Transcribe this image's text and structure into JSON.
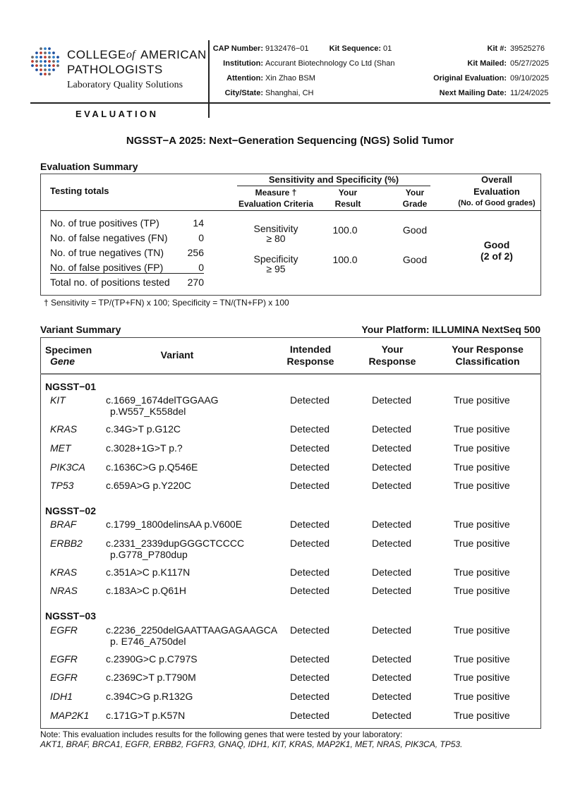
{
  "header": {
    "logo": {
      "word_1": "COLLEGE",
      "word_of": "of",
      "word_2": "AMERICAN",
      "word_3": "PATHOLOGISTS",
      "tagline": "Laboratory Quality Solutions"
    },
    "section": "EVALUATION",
    "fields_left": [
      {
        "label": "CAP Number:",
        "value": "9132476−01"
      },
      {
        "label": "Kit Sequence:",
        "value": "01"
      },
      {
        "label": "Institution:",
        "value": "Accurant Biotechnology Co Ltd (Shan"
      },
      {
        "label": "Attention:",
        "value": "Xin Zhao BSM"
      },
      {
        "label": "City/State:",
        "value": "Shanghai, CH"
      }
    ],
    "fields_right": [
      {
        "label": "Kit #:",
        "value": "39525276"
      },
      {
        "label": "Kit Mailed:",
        "value": "05/27/2025"
      },
      {
        "label": "Original Evaluation:",
        "value": "09/10/2025"
      },
      {
        "label": "Next Mailing Date:",
        "value": "11/24/2025"
      }
    ]
  },
  "title": "NGSST−A 2025: Next−Generation Sequencing (NGS) Solid Tumor",
  "evaluation_summary": {
    "heading": "Evaluation Summary",
    "testing_totals": "Testing totals",
    "group_header": "Sensitivity and Specificity (%)",
    "col_measure": [
      "Measure †",
      "Evaluation Criteria"
    ],
    "col_result": [
      "Your",
      "Result"
    ],
    "col_grade": [
      "Your",
      "Grade"
    ],
    "col_overall": [
      "Overall",
      "Evaluation",
      "(No. of Good grades)"
    ],
    "totals": [
      {
        "label": "No. of true positives (TP)",
        "value": 14
      },
      {
        "label": "No. of false negatives (FN)",
        "value": 0
      },
      {
        "label": "No. of true negatives (TN)",
        "value": 256
      },
      {
        "label": "No. of false positives (FP)",
        "value": 0
      },
      {
        "label": "Total no. of positions tested",
        "value": 270
      }
    ],
    "measures": [
      {
        "name": "Sensitivity",
        "criteria": "≥ 80",
        "result": "100.0",
        "grade": "Good"
      },
      {
        "name": "Specificity",
        "criteria": "≥ 95",
        "result": "100.0",
        "grade": "Good"
      }
    ],
    "overall": {
      "grade": "Good",
      "count": "(2 of 2)"
    },
    "footnote": "† Sensitivity = TP/(TP+FN) x 100; Specificity = TN/(TN+FP) x 100"
  },
  "variant_summary": {
    "heading": "Variant Summary",
    "platform": "Your Platform: ILLUMINA NextSeq 500",
    "col_specimen": [
      "Specimen",
      "Gene"
    ],
    "col_variant": "Variant",
    "col_intended": [
      "Intended",
      "Response"
    ],
    "col_response": [
      "Your",
      "Response"
    ],
    "col_class": [
      "Your Response",
      "Classification"
    ],
    "groups": [
      {
        "specimen": "NGSST−01",
        "rows": [
          {
            "gene": "KIT",
            "variant": [
              "c.1669_1674delTGGAAG",
              "p.W557_K558del"
            ],
            "intended": "Detected",
            "response": "Detected",
            "classification": "True positive"
          },
          {
            "gene": "KRAS",
            "variant": [
              "c.34G>T p.G12C"
            ],
            "intended": "Detected",
            "response": "Detected",
            "classification": "True positive"
          },
          {
            "gene": "MET",
            "variant": [
              "c.3028+1G>T p.?"
            ],
            "intended": "Detected",
            "response": "Detected",
            "classification": "True positive"
          },
          {
            "gene": "PIK3CA",
            "variant": [
              "c.1636C>G p.Q546E"
            ],
            "intended": "Detected",
            "response": "Detected",
            "classification": "True positive"
          },
          {
            "gene": "TP53",
            "variant": [
              "c.659A>G p.Y220C"
            ],
            "intended": "Detected",
            "response": "Detected",
            "classification": "True positive"
          }
        ]
      },
      {
        "specimen": "NGSST−02",
        "rows": [
          {
            "gene": "BRAF",
            "variant": [
              "c.1799_1800delinsAA p.V600E"
            ],
            "intended": "Detected",
            "response": "Detected",
            "classification": "True positive"
          },
          {
            "gene": "ERBB2",
            "variant": [
              "c.2331_2339dupGGGCTCCCC",
              "p.G778_P780dup"
            ],
            "intended": "Detected",
            "response": "Detected",
            "classification": "True positive"
          },
          {
            "gene": "KRAS",
            "variant": [
              "c.351A>C p.K117N"
            ],
            "intended": "Detected",
            "response": "Detected",
            "classification": "True positive"
          },
          {
            "gene": "NRAS",
            "variant": [
              "c.183A>C p.Q61H"
            ],
            "intended": "Detected",
            "response": "Detected",
            "classification": "True positive"
          }
        ]
      },
      {
        "specimen": "NGSST−03",
        "rows": [
          {
            "gene": "EGFR",
            "variant": [
              "c.2236_2250delGAATTAAGAGAAGCA",
              "p. E746_A750del"
            ],
            "intended": "Detected",
            "response": "Detected",
            "classification": "True positive"
          },
          {
            "gene": "EGFR",
            "variant": [
              "c.2390G>C p.C797S"
            ],
            "intended": "Detected",
            "response": "Detected",
            "classification": "True positive"
          },
          {
            "gene": "EGFR",
            "variant": [
              "c.2369C>T p.T790M"
            ],
            "intended": "Detected",
            "response": "Detected",
            "classification": "True positive"
          },
          {
            "gene": "IDH1",
            "variant": [
              "c.394C>G p.R132G"
            ],
            "intended": "Detected",
            "response": "Detected",
            "classification": "True positive"
          },
          {
            "gene": "MAP2K1",
            "variant": [
              "c.171G>T p.K57N"
            ],
            "intended": "Detected",
            "response": "Detected",
            "classification": "True positive"
          }
        ]
      }
    ]
  },
  "note": {
    "text": "Note: This evaluation includes results for the following genes that were tested by your laboratory:",
    "genes": "AKT1, BRAF, BRCA1, EGFR, ERBB2, FGFR3, GNAQ, IDH1, KIT, KRAS, MAP2K1, MET, NRAS, PIK3CA, TP53."
  }
}
